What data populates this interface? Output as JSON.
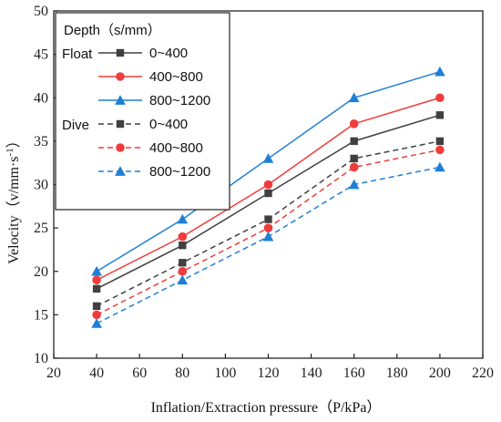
{
  "chart_data": {
    "type": "line",
    "xlabel": "Inflation/Extraction pressure（P/kPa）",
    "ylabel_main": "Velocity（v/mm·s",
    "ylabel_sup": "-1",
    "ylabel_end": "）",
    "xlim": [
      20,
      220
    ],
    "ylim": [
      10,
      50
    ],
    "xticks": [
      20,
      40,
      60,
      80,
      100,
      120,
      140,
      160,
      180,
      200,
      220
    ],
    "yticks": [
      10,
      15,
      20,
      25,
      30,
      35,
      40,
      45,
      50
    ],
    "x": [
      40,
      80,
      120,
      160,
      200
    ],
    "legend": {
      "title": "Depth（s/mm",
      "group_float": "Float",
      "group_dive": "Dive",
      "position": "top-left"
    },
    "series": [
      {
        "name": "0~400",
        "group": "Float",
        "color": "#404040",
        "marker": "square",
        "dash": false,
        "values": [
          18,
          23,
          29,
          35,
          38
        ]
      },
      {
        "name": "400~800",
        "group": "Float",
        "color": "#f03c3c",
        "marker": "circle",
        "dash": false,
        "values": [
          19,
          24,
          30,
          37,
          40
        ]
      },
      {
        "name": "800~1200",
        "group": "Float",
        "color": "#1f7fd6",
        "marker": "triangle",
        "dash": false,
        "values": [
          20,
          26,
          33,
          40,
          43
        ]
      },
      {
        "name": "0~400",
        "group": "Dive",
        "color": "#404040",
        "marker": "square",
        "dash": true,
        "values": [
          16,
          21,
          26,
          33,
          35
        ]
      },
      {
        "name": "400~800",
        "group": "Dive",
        "color": "#f03c3c",
        "marker": "circle",
        "dash": true,
        "values": [
          15,
          20,
          25,
          32,
          34
        ]
      },
      {
        "name": "800~1200",
        "group": "Dive",
        "color": "#1f7fd6",
        "marker": "triangle",
        "dash": true,
        "values": [
          14,
          19,
          24,
          30,
          32
        ]
      }
    ]
  }
}
